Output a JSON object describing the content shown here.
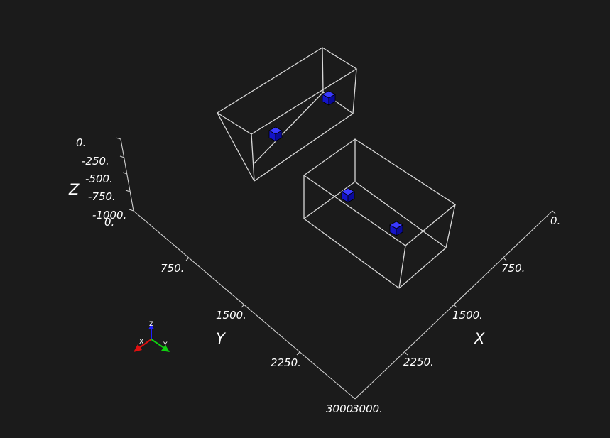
{
  "scene": {
    "background": "#1b1b1b",
    "box_outline_color": "#d8d8d8",
    "cube_color": "#1010d0"
  },
  "axes": {
    "z": {
      "title": "Z",
      "ticks": [
        "0.",
        "-250.",
        "-500.",
        "-750.",
        "-1000."
      ]
    },
    "y": {
      "title": "Y",
      "ticks": [
        "0.",
        "750.",
        "1500.",
        "2250.",
        "3000"
      ]
    },
    "x": {
      "title": "X",
      "ticks": [
        "0.",
        "750.",
        "1500.",
        "2250.",
        "3000."
      ]
    }
  },
  "orientation_triad": {
    "labels": {
      "z": "Z",
      "x": "X",
      "y": "Y"
    },
    "colors": {
      "z": "#2020ff",
      "x": "#e01010",
      "y": "#10d010"
    }
  }
}
